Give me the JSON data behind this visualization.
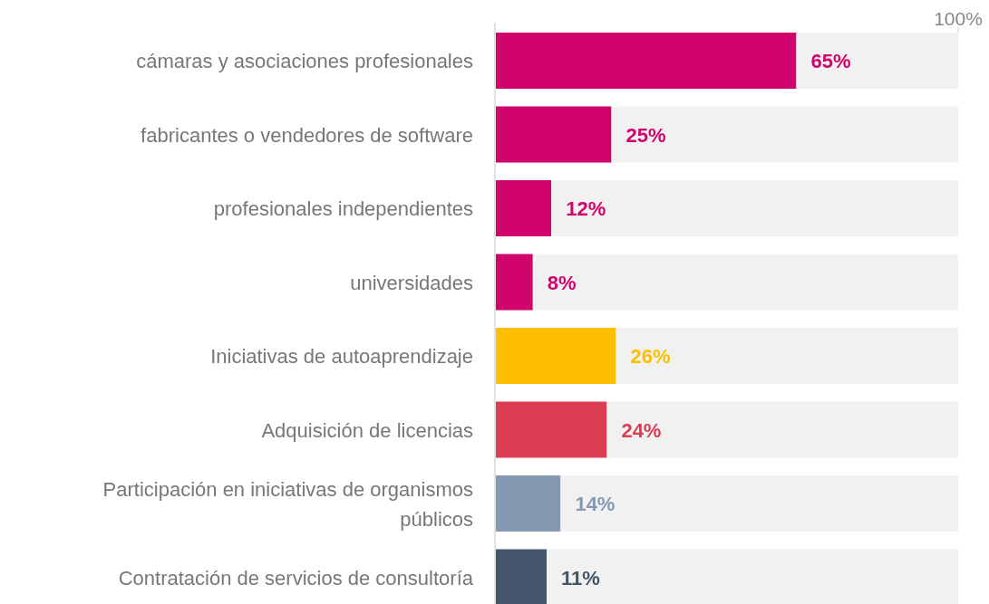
{
  "chart_data": {
    "type": "bar",
    "orientation": "horizontal",
    "stacked": true,
    "categories": [
      "cámaras y asociaciones profesionales",
      "fabricantes o vendedores de software",
      "profesionales independientes",
      "universidades",
      "Iniciativas de autoaprendizaje",
      "Adquisición de licencias",
      "Participación en iniciativas de organismos públicos",
      "Contratación de servicios de consultoría"
    ],
    "series": [
      {
        "colors": [
          "#d0046c",
          "#d0046c",
          "#d0046c",
          "#d0046c",
          "#fdbf00",
          "#dc3d52",
          "#8598b2",
          "#44546a"
        ],
        "values": [
          65,
          25,
          12,
          8,
          26,
          24,
          14,
          11
        ],
        "value_labels": [
          "65%",
          "25%",
          "12%",
          "8%",
          "26%",
          "24%",
          "14%",
          "11%"
        ]
      },
      {
        "color": "#f1f1f1",
        "values": [
          35,
          75,
          88,
          92,
          74,
          76,
          86,
          89
        ]
      }
    ],
    "xlim": [
      0,
      100
    ],
    "xticks": [
      {
        "value": 100,
        "label": "100%"
      }
    ]
  }
}
